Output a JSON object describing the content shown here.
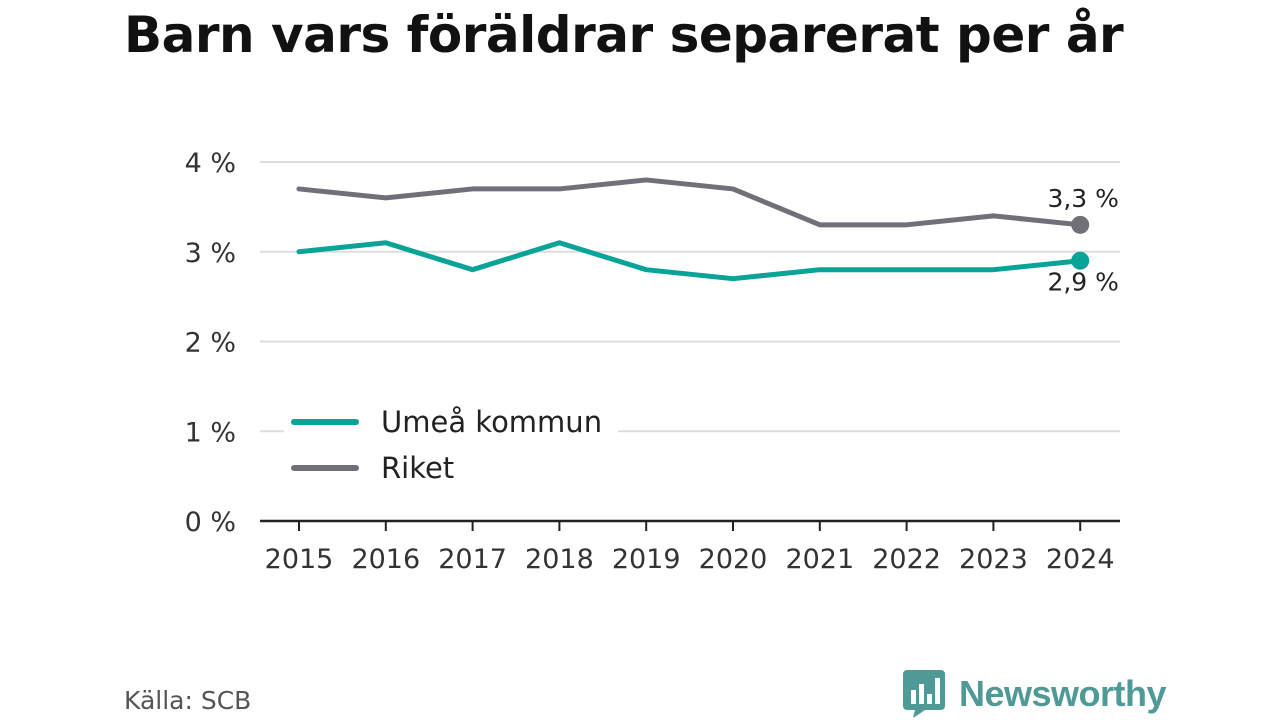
{
  "title": "Barn vars föräldrar separerat per år",
  "source": "Källa: SCB",
  "brand": {
    "name": "Newsworthy",
    "logo_icon": "newsworthy-chart-bubble-icon",
    "color": "#4f9a96"
  },
  "chart_data": {
    "type": "line",
    "title": "Barn vars föräldrar separerat per år",
    "x": [
      "2015",
      "2016",
      "2017",
      "2018",
      "2019",
      "2020",
      "2021",
      "2022",
      "2023",
      "2024"
    ],
    "ylim": [
      0,
      4
    ],
    "yticks": [
      0,
      1,
      2,
      3,
      4
    ],
    "ytick_labels": [
      "0 %",
      "1 %",
      "2 %",
      "3 %",
      "4 %"
    ],
    "grid": true,
    "legend_placement": "lower-left",
    "series": [
      {
        "name": "Umeå kommun",
        "color": "#0aa398",
        "values": [
          3.0,
          3.1,
          2.8,
          3.1,
          2.8,
          2.7,
          2.8,
          2.8,
          2.8,
          2.9
        ],
        "end_label": "2,9 %"
      },
      {
        "name": "Riket",
        "color": "#717078",
        "values": [
          3.7,
          3.6,
          3.7,
          3.7,
          3.8,
          3.7,
          3.3,
          3.3,
          3.4,
          3.3
        ],
        "end_label": "3,3 %"
      }
    ]
  }
}
